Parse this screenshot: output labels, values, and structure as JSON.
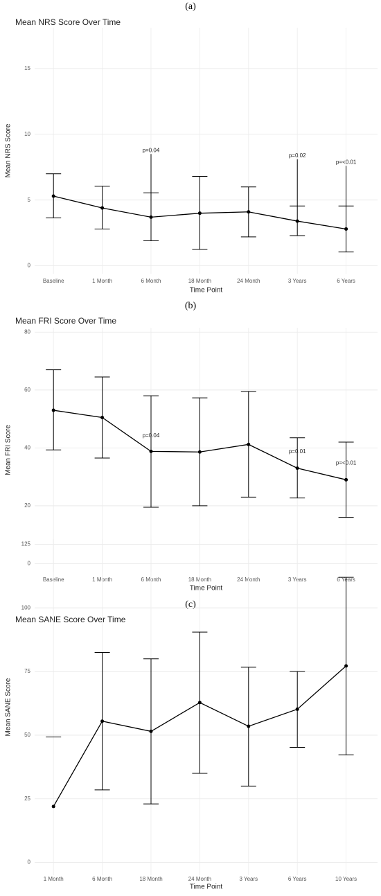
{
  "chart_data": [
    {
      "type": "line",
      "panel_label": "(a)",
      "title": "Mean NRS Score Over Time",
      "x_label": "Time Point",
      "y_label": "Mean NRS Score",
      "categories": [
        "Baseline",
        "1 Month",
        "6 Month",
        "18 Month",
        "24 Month",
        "3 Years",
        "6 Years"
      ],
      "values": [
        5.3,
        4.4,
        3.7,
        4.0,
        4.1,
        3.4,
        2.8
      ],
      "error_low": [
        3.65,
        2.8,
        1.9,
        1.25,
        2.2,
        2.3,
        1.05
      ],
      "error_high": [
        7.0,
        6.05,
        5.55,
        6.8,
        6.0,
        4.55,
        4.55
      ],
      "annotations": [
        {
          "x": "6 Month",
          "y": 8.5,
          "text": "p=0.04"
        },
        {
          "x": "3 Years",
          "y": 8.1,
          "text": "p=0.02"
        },
        {
          "x": "6 Years",
          "y": 7.6,
          "text": "p=<0.01"
        }
      ],
      "color": "#000000",
      "ylim": [
        -0.6,
        18.1
      ],
      "yticks": [
        0,
        5,
        10,
        15
      ],
      "grid": true
    },
    {
      "type": "line",
      "panel_label": "(b)",
      "title": "Mean FRI Score Over Time",
      "x_label": "Time Point",
      "y_label": "Mean FRI Score",
      "categories": [
        "Baseline",
        "1 Month",
        "6 Month",
        "18 Month",
        "24 Month",
        "3 Years",
        "6 Years"
      ],
      "values": [
        53,
        50.5,
        38.8,
        38.6,
        41.2,
        33,
        29
      ],
      "error_low": [
        39.3,
        36.5,
        19.5,
        20,
        23,
        22.7,
        16
      ],
      "error_high": [
        67,
        64.5,
        58,
        57.3,
        59.5,
        43.5,
        42
      ],
      "annotations": [
        {
          "x": "6 Month",
          "y": 43,
          "text": "p=0.04"
        },
        {
          "x": "3 Years",
          "y": 37.5,
          "text": "p=0.01"
        },
        {
          "x": "6 Years",
          "y": 33.5,
          "text": "p=<0.01"
        }
      ],
      "color": "#000000",
      "ylim": [
        -3,
        81.5
      ],
      "yticks": [
        0,
        20,
        40,
        60,
        80
      ],
      "grid": true
    },
    {
      "type": "line",
      "panel_label": "(c)",
      "title": "Mean SANE Score Over Time",
      "x_label": "Time Point",
      "y_label": "Mean SANE Score",
      "categories": [
        "1 Month",
        "6 Month",
        "18 Month",
        "24 Month",
        "3 Years",
        "6 Years",
        "10 Years"
      ],
      "values": [
        22,
        55.5,
        51.5,
        62.8,
        53.5,
        60.2,
        77.2
      ],
      "error_low": [
        null,
        28.5,
        23,
        35,
        30,
        45.2,
        42.3
      ],
      "error_high": [
        49.3,
        82.5,
        80,
        90.5,
        76.7,
        75,
        112
      ],
      "annotations": [],
      "color": "#000000",
      "ylim": [
        -5,
        127
      ],
      "yticks": [
        0,
        25,
        50,
        75,
        100,
        125
      ],
      "grid": true
    }
  ]
}
